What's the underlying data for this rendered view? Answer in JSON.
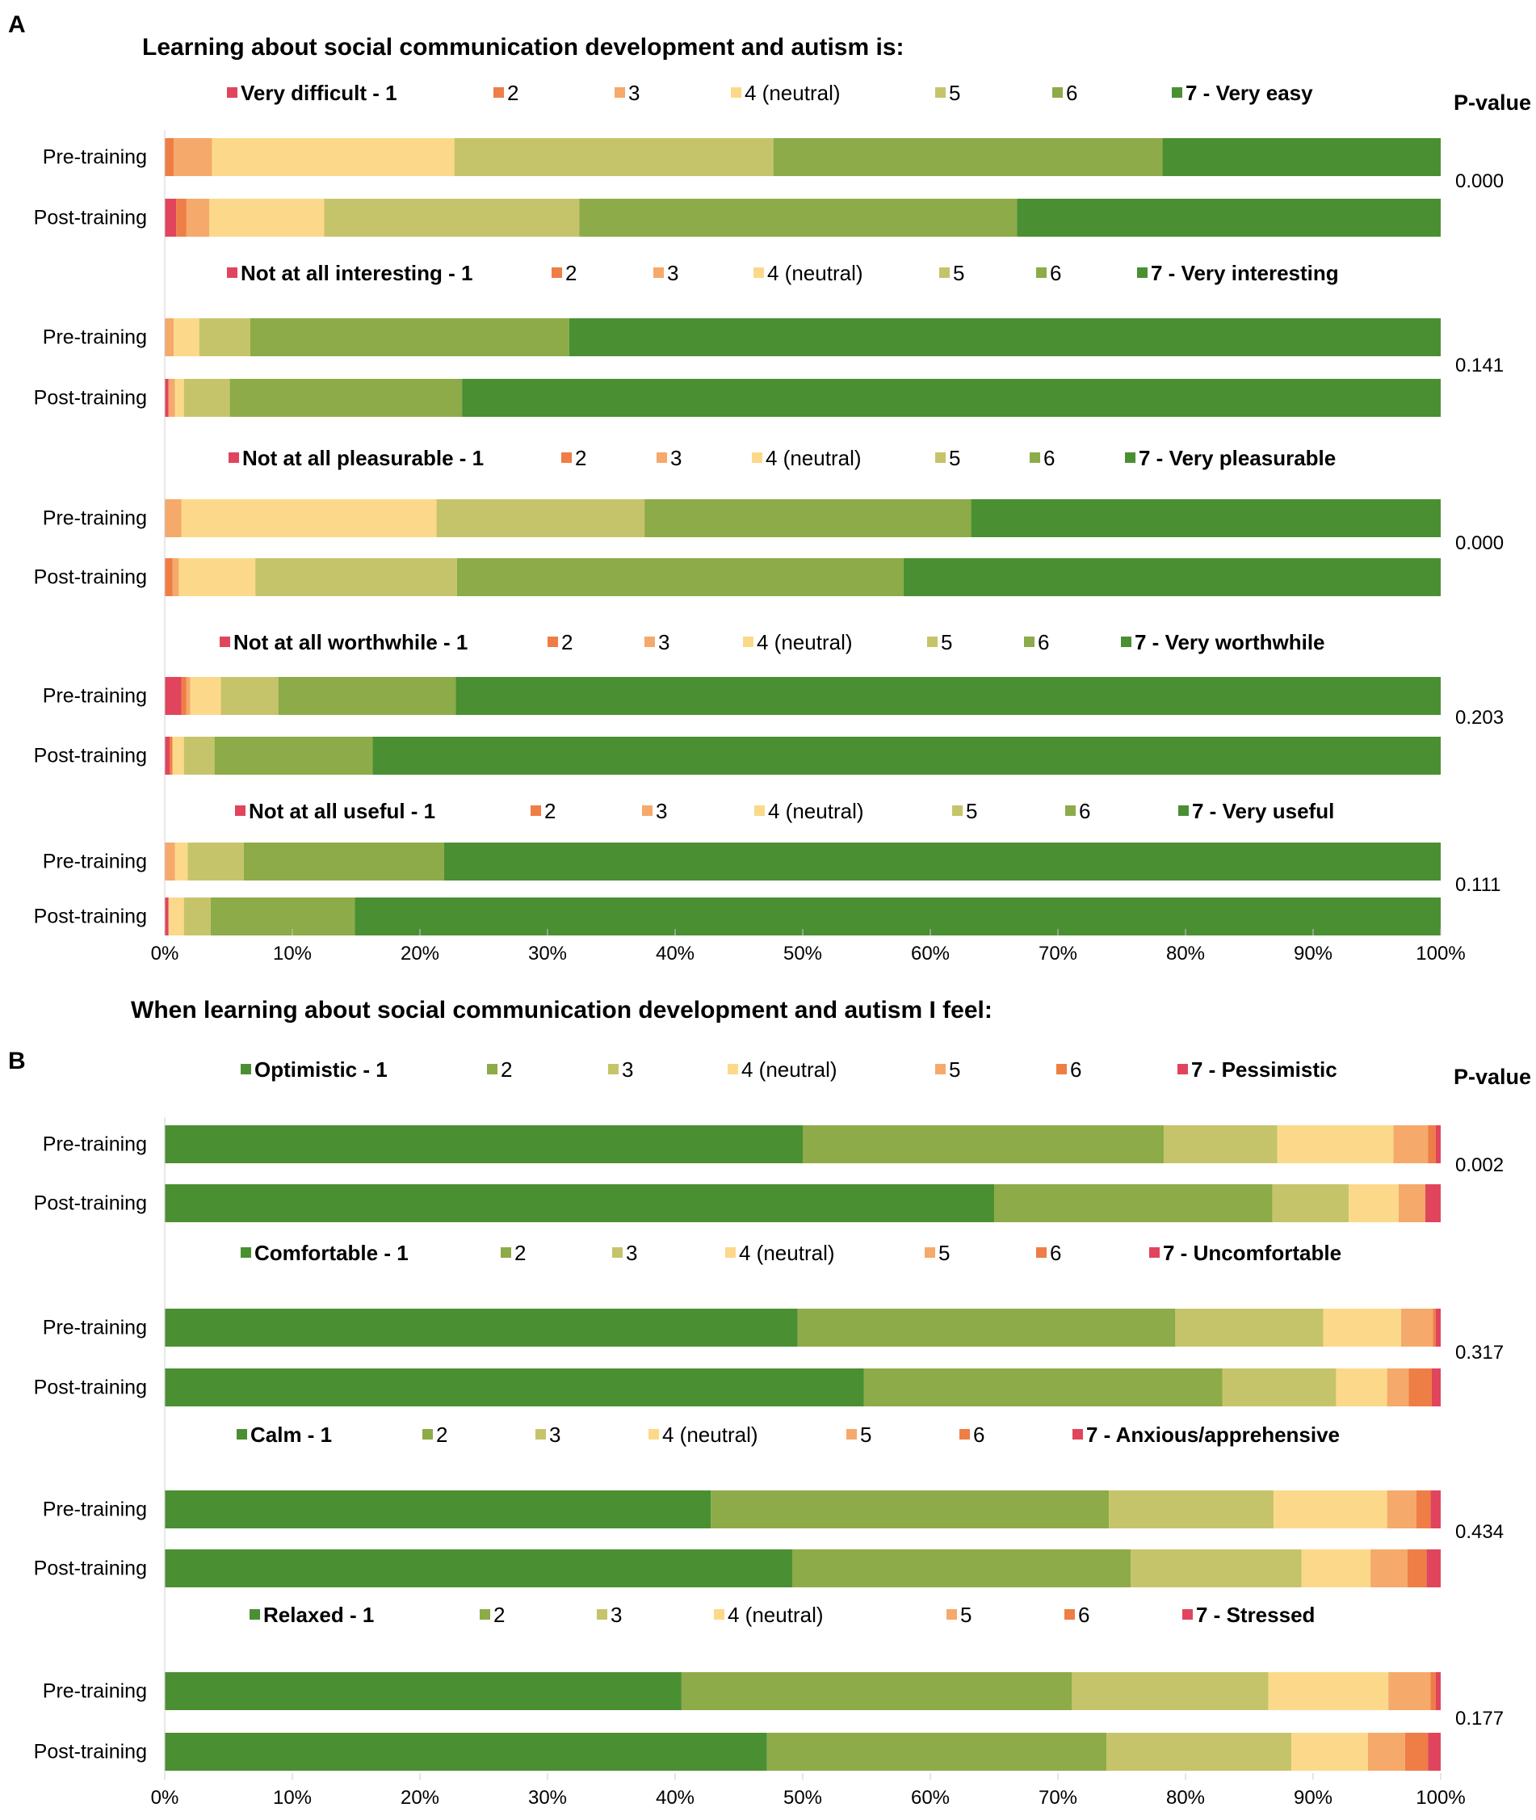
{
  "panels": [
    {
      "letter": "A",
      "title": "Learning about social communication development and autism is:",
      "pvalue_header": "P-value",
      "groups": [
        {
          "legend": [
            "Very difficult - 1",
            "2",
            "3",
            "4 (neutral)",
            "5",
            "6",
            "7 - Very easy"
          ],
          "rows": [
            {
              "label": "Pre-training",
              "values": [
                0,
                0.7,
                3.0,
                19.0,
                25.0,
                30.5,
                21.8
              ]
            },
            {
              "label": "Post-training",
              "values": [
                0.9,
                0.8,
                1.8,
                9.0,
                20.0,
                34.3,
                33.2
              ]
            }
          ],
          "pvalue": "0.000"
        },
        {
          "legend": [
            "Not at all interesting - 1",
            "2",
            "3",
            "4 (neutral)",
            "5",
            "6",
            "7 - Very interesting"
          ],
          "rows": [
            {
              "label": "Pre-training",
              "values": [
                0,
                0,
                0.7,
                2.0,
                4.0,
                25.0,
                68.3
              ]
            },
            {
              "label": "Post-training",
              "values": [
                0.3,
                0,
                0.5,
                0.7,
                3.6,
                18.2,
                76.7
              ]
            }
          ],
          "pvalue": "0.141"
        },
        {
          "legend": [
            "Not at all pleasurable - 1",
            "2",
            "3",
            "4 (neutral)",
            "5",
            "6",
            "7 - Very pleasurable"
          ],
          "rows": [
            {
              "label": "Pre-training",
              "values": [
                0,
                0,
                1.3,
                20.0,
                16.3,
                25.6,
                36.8
              ]
            },
            {
              "label": "Post-training",
              "values": [
                0,
                0.6,
                0.5,
                6.0,
                15.8,
                35.0,
                42.1
              ]
            }
          ],
          "pvalue": "0.000"
        },
        {
          "legend": [
            "Not at all worthwhile - 1",
            "2",
            "3",
            "4 (neutral)",
            "5",
            "6",
            "7 - Very worthwhile"
          ],
          "rows": [
            {
              "label": "Pre-training",
              "values": [
                1.3,
                0.4,
                0.3,
                2.4,
                4.5,
                13.9,
                77.2
              ]
            },
            {
              "label": "Post-training",
              "values": [
                0.4,
                0.2,
                0,
                0.9,
                2.4,
                12.4,
                83.7
              ]
            }
          ],
          "pvalue": "0.203"
        },
        {
          "legend": [
            "Not at all useful - 1",
            "2",
            "3",
            "4 (neutral)",
            "5",
            "6",
            "7 - Very useful"
          ],
          "rows": [
            {
              "label": "Pre-training",
              "values": [
                0,
                0,
                0.8,
                1.0,
                4.4,
                15.7,
                78.1
              ]
            },
            {
              "label": "Post-training",
              "values": [
                0.3,
                0,
                0,
                1.2,
                2.1,
                11.3,
                85.1
              ]
            }
          ],
          "pvalue": "0.111"
        }
      ]
    },
    {
      "letter": "B",
      "title": "When learning about social communication development and autism I feel:",
      "pvalue_header": "P-value",
      "groups": [
        {
          "legend": [
            "Optimistic - 1",
            "2",
            "3",
            "4 (neutral)",
            "5",
            "6",
            "7 - Pessimistic"
          ],
          "rows": [
            {
              "label": "Pre-training",
              "values": [
                50.0,
                28.3,
                8.9,
                9.1,
                2.7,
                0.6,
                0.4
              ]
            },
            {
              "label": "Post-training",
              "values": [
                65.0,
                21.8,
                6.0,
                3.9,
                2.1,
                0,
                1.2
              ]
            }
          ],
          "pvalue": "0.002"
        },
        {
          "legend": [
            "Comfortable - 1",
            "2",
            "3",
            "4 (neutral)",
            "5",
            "6",
            "7 - Uncomfortable"
          ],
          "rows": [
            {
              "label": "Pre-training",
              "values": [
                49.6,
                29.6,
                11.6,
                6.1,
                2.5,
                0.2,
                0.4
              ]
            },
            {
              "label": "Post-training",
              "values": [
                54.8,
                28.1,
                8.9,
                4.0,
                1.7,
                1.8,
                0.7
              ]
            }
          ],
          "pvalue": "0.317"
        },
        {
          "legend": [
            "Calm - 1",
            "2",
            "3",
            "4 (neutral)",
            "5",
            "6",
            "7 - Anxious/apprehensive"
          ],
          "rows": [
            {
              "label": "Pre-training",
              "values": [
                42.8,
                31.2,
                12.9,
                8.9,
                2.3,
                1.1,
                0.8
              ]
            },
            {
              "label": "Post-training",
              "values": [
                49.2,
                26.5,
                13.4,
                5.4,
                2.9,
                1.5,
                1.1
              ]
            }
          ],
          "pvalue": "0.434"
        },
        {
          "legend": [
            "Relaxed - 1",
            "2",
            "3",
            "4 (neutral)",
            "5",
            "6",
            "7 - Stressed"
          ],
          "rows": [
            {
              "label": "Pre-training",
              "values": [
                40.5,
                30.6,
                15.4,
                9.4,
                3.3,
                0.4,
                0.4
              ]
            },
            {
              "label": "Post-training",
              "values": [
                47.2,
                26.6,
                14.5,
                6.0,
                2.9,
                1.8,
                1.0
              ]
            }
          ],
          "pvalue": "0.177"
        }
      ]
    }
  ],
  "palettes": {
    "positive_high": [
      "#e0455d",
      "#ee7e45",
      "#f5a96b",
      "#fcd98a",
      "#c6c46a",
      "#8dab48",
      "#4b8f33"
    ],
    "positive_low": [
      "#4b8f33",
      "#8dab48",
      "#c6c46a",
      "#fcd98a",
      "#f5a96b",
      "#ee7e45",
      "#e0455d"
    ]
  },
  "axis": {
    "ticks": [
      "0%",
      "10%",
      "20%",
      "30%",
      "40%",
      "50%",
      "60%",
      "70%",
      "80%",
      "90%",
      "100%"
    ]
  },
  "chart_data": [
    {
      "type": "bar",
      "orientation": "horizontal",
      "stacked": true,
      "title": "Learning about social communication development and autism is:",
      "categories": [
        "Pre-training",
        "Post-training"
      ],
      "xlim": [
        0,
        100
      ],
      "xlabel": "",
      "ylabel": "",
      "series_names": [
        "1",
        "2",
        "3",
        "4 (neutral)",
        "5",
        "6",
        "7"
      ],
      "groups": [
        "easy",
        "interesting",
        "pleasurable",
        "worthwhile",
        "useful"
      ]
    },
    {
      "type": "bar",
      "orientation": "horizontal",
      "stacked": true,
      "title": "When learning about social communication development and autism I feel:",
      "categories": [
        "Pre-training",
        "Post-training"
      ],
      "xlim": [
        0,
        100
      ],
      "xlabel": "",
      "ylabel": "",
      "series_names": [
        "1",
        "2",
        "3",
        "4 (neutral)",
        "5",
        "6",
        "7"
      ],
      "groups": [
        "optimistic-pessimistic",
        "comfortable-uncomfortable",
        "calm-anxious",
        "relaxed-stressed"
      ]
    }
  ]
}
